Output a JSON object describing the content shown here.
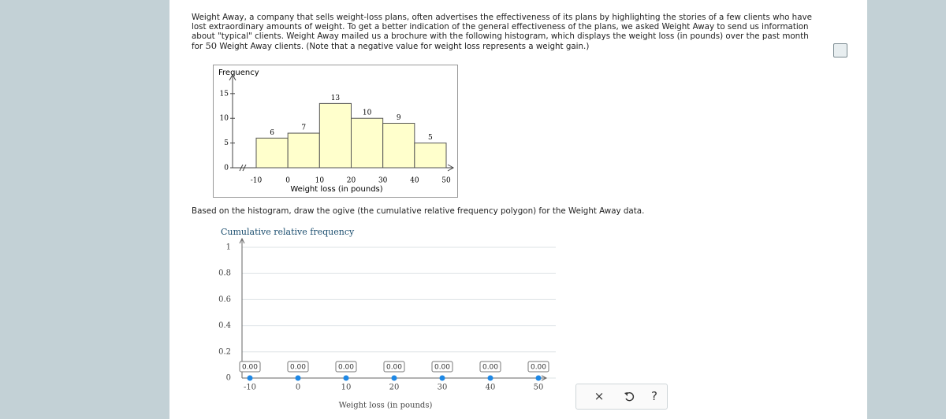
{
  "prompt": {
    "text_before": "Weight Away, a company that sells weight-loss plans, often advertises the effectiveness of its plans by highlighting the stories of a few clients who have lost extraordinary amounts of weight. To get a better indication of the general effectiveness of the plans, we asked Weight Away to send us information about \"typical\" clients. Weight Away mailed us a brochure with the following histogram, which displays the weight loss (in pounds) over the past month for ",
    "sample_size": 50,
    "text_after": " Weight Away clients. (Note that a negative value for weight loss represents a weight gain.)"
  },
  "histogram": {
    "type": "histogram",
    "y_label": "Frequency",
    "x_label": "Weight loss (in pounds)",
    "bins": [
      -10,
      0,
      10,
      20,
      30,
      40,
      50
    ],
    "values": [
      6,
      7,
      13,
      10,
      9,
      5
    ],
    "color": "#ffffcc",
    "ylim": [
      0,
      18
    ],
    "yticks": [
      0,
      5,
      10,
      15
    ],
    "xlim": [
      -10,
      50
    ],
    "xticks": [
      -10,
      0,
      10,
      20,
      30,
      40,
      50
    ]
  },
  "instruction": "Based on the histogram, draw the ogive (the cumulative relative frequency polygon) for the Weight Away data.",
  "ogive": {
    "type": "line",
    "y_label": "Cumulative relative frequency",
    "x_label": "Weight loss (in pounds)",
    "x": [
      -10,
      0,
      10,
      20,
      30,
      40,
      50
    ],
    "values": [
      0,
      0,
      0,
      0,
      0,
      0,
      0
    ],
    "value_labels": [
      "0.00",
      "0.00",
      "0.00",
      "0.00",
      "0.00",
      "0.00",
      "0.00"
    ],
    "color": "#1e88e5",
    "ylim": [
      0,
      1
    ],
    "yticks": [
      0,
      0.2,
      0.4,
      0.6,
      0.8,
      1
    ],
    "xlim": [
      -10,
      50
    ],
    "xticks": [
      -10,
      0,
      10,
      20,
      30,
      40,
      50
    ],
    "grid": true
  },
  "buttons": {
    "clear": "×",
    "help": "?"
  }
}
